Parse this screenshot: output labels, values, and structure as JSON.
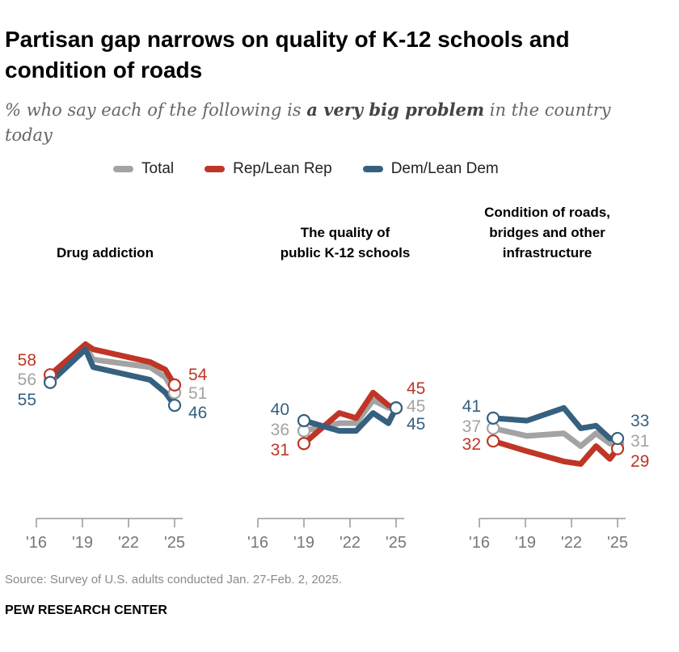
{
  "title": "Partisan gap narrows on quality of K-12 schools and condition of roads",
  "subtitle": {
    "pre": "% who say each of the following is ",
    "emphasis": "a very big problem",
    "post": " in the country today"
  },
  "legend": [
    {
      "name": "Total",
      "color": "#a3a3a3"
    },
    {
      "name": "Rep/Lean Rep",
      "color": "#bf3526"
    },
    {
      "name": "Dem/Lean Dem",
      "color": "#36607f"
    }
  ],
  "chart_data": [
    {
      "type": "line",
      "title": "Drug addiction",
      "x_ticks": [
        "'16",
        "'19",
        "'22",
        "'25"
      ],
      "xlim": [
        2016,
        2025
      ],
      "series": [
        {
          "name": "Total",
          "x": [
            2016.9,
            2019.2,
            2019.7,
            2023.4,
            2024.4,
            2025.0
          ],
          "values": [
            56,
            69,
            64,
            61,
            57,
            51
          ]
        },
        {
          "name": "Rep/Lean Rep",
          "x": [
            2016.9,
            2019.2,
            2019.7,
            2023.4,
            2024.4,
            2025.0
          ],
          "values": [
            58,
            70,
            68,
            63,
            60,
            54
          ]
        },
        {
          "name": "Dem/Lean Dem",
          "x": [
            2016.9,
            2019.2,
            2019.7,
            2023.4,
            2024.4,
            2025.0
          ],
          "values": [
            55,
            68,
            61,
            56,
            51,
            46
          ]
        }
      ]
    },
    {
      "type": "line",
      "title": "The quality of public K-12 schools",
      "title_lines": [
        "The quality of",
        "public K-12 schools"
      ],
      "x_ticks": [
        "'16",
        "'19",
        "'22",
        "'25"
      ],
      "xlim": [
        2016,
        2025
      ],
      "series": [
        {
          "name": "Total",
          "x": [
            2019.0,
            2021.3,
            2022.4,
            2023.5,
            2024.5,
            2025.0
          ],
          "values": [
            36,
            39,
            39,
            48,
            45,
            45
          ]
        },
        {
          "name": "Rep/Lean Rep",
          "x": [
            2019.0,
            2021.3,
            2022.4,
            2023.5,
            2024.5,
            2025.0
          ],
          "values": [
            31,
            43,
            41,
            51,
            46,
            45
          ]
        },
        {
          "name": "Dem/Lean Dem",
          "x": [
            2019.0,
            2021.3,
            2022.4,
            2023.5,
            2024.5,
            2025.0
          ],
          "values": [
            40,
            36,
            36,
            43,
            39,
            45
          ]
        }
      ]
    },
    {
      "type": "line",
      "title": "Condition of roads, bridges and other infrastructure",
      "title_lines": [
        "Condition of roads,",
        "bridges and other",
        "infrastructure"
      ],
      "x_ticks": [
        "'16",
        "'19",
        "'22",
        "'25"
      ],
      "xlim": [
        2016,
        2025
      ],
      "series": [
        {
          "name": "Total",
          "x": [
            2016.9,
            2019.1,
            2021.5,
            2022.6,
            2023.6,
            2024.5,
            2025.0
          ],
          "values": [
            37,
            34,
            35,
            30,
            35,
            31,
            31
          ]
        },
        {
          "name": "Rep/Lean Rep",
          "x": [
            2016.9,
            2019.1,
            2021.5,
            2022.6,
            2023.6,
            2024.5,
            2025.0
          ],
          "values": [
            32,
            28,
            24,
            23,
            30,
            25,
            29
          ]
        },
        {
          "name": "Dem/Lean Dem",
          "x": [
            2016.9,
            2019.1,
            2021.5,
            2022.6,
            2023.6,
            2024.5,
            2025.0
          ],
          "values": [
            41,
            40,
            45,
            37,
            38,
            33,
            33
          ]
        }
      ]
    }
  ],
  "source": "Source: Survey of U.S. adults conducted Jan. 27-Feb. 2, 2025.",
  "brand": "PEW RESEARCH CENTER"
}
